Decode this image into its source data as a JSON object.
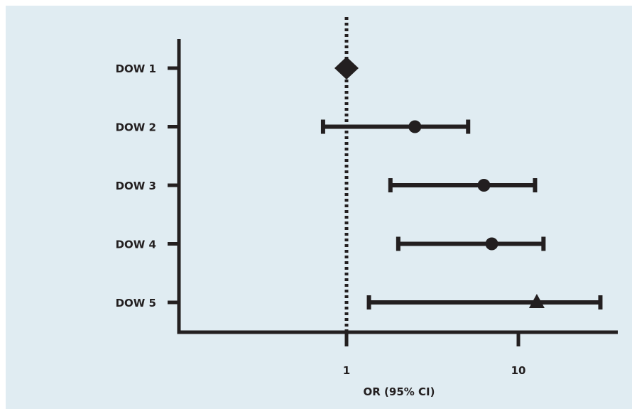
{
  "chart_data": {
    "type": "forest",
    "x_scale": "log",
    "xlabel": "OR (95% CI)",
    "x_ticks": [
      {
        "value": 1,
        "label": "1"
      },
      {
        "value": 10,
        "label": "10"
      }
    ],
    "reference_line": {
      "value": 1,
      "style": "dotted"
    },
    "rows": [
      {
        "label": "DOW 1",
        "or": 1.0,
        "ci": null,
        "marker": "diamond"
      },
      {
        "label": "DOW 2",
        "or": 2.5,
        "ci": [
          0.73,
          5.1
        ],
        "marker": "circle"
      },
      {
        "label": "DOW 3",
        "or": 6.3,
        "ci": [
          1.8,
          12.5
        ],
        "marker": "circle"
      },
      {
        "label": "DOW 4",
        "or": 7.0,
        "ci": [
          2.0,
          14.0
        ],
        "marker": "circle"
      },
      {
        "label": "DOW 5",
        "or": 12.8,
        "ci": [
          1.35,
          30.0
        ],
        "marker": "triangle"
      }
    ],
    "colors": {
      "marks": "#231f20",
      "background": "#e0ecf2"
    }
  }
}
